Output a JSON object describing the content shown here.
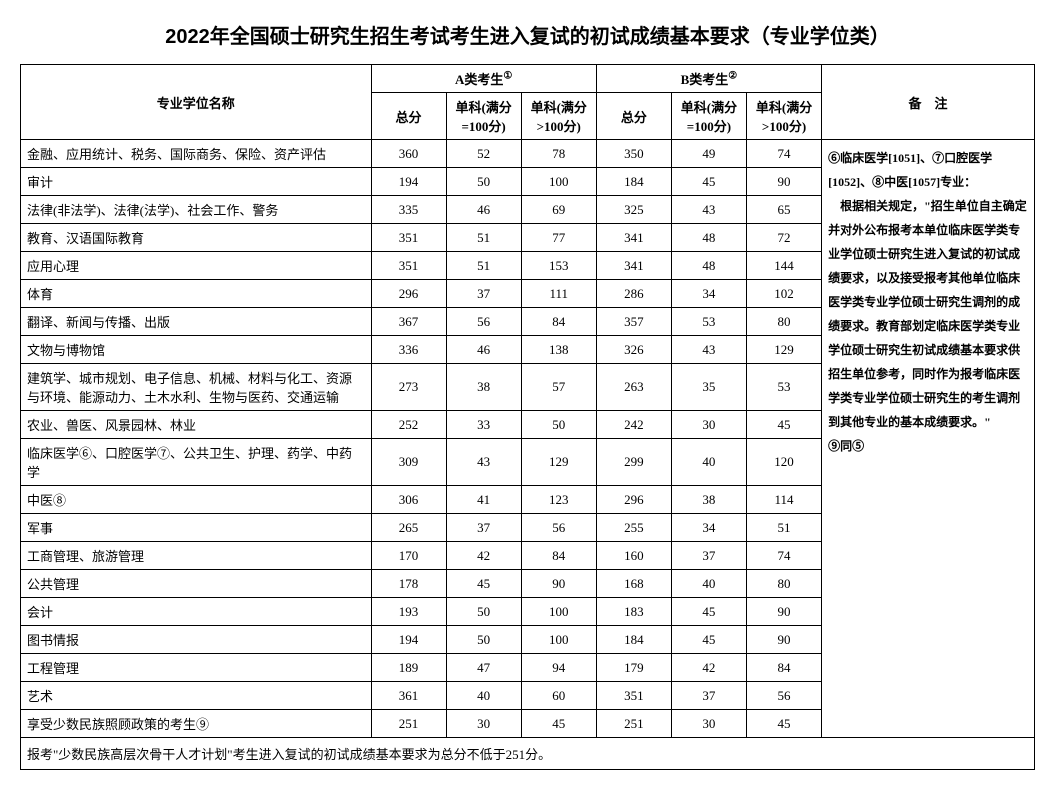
{
  "title": "2022年全国硕士研究生招生考试考生进入复试的初试成绩基本要求（专业学位类）",
  "headers": {
    "name": "专业学位名称",
    "groupA": "A类考生",
    "groupB": "B类考生",
    "total": "总分",
    "sub100": "单科(满分=100分)",
    "subOver100": "单科(满分>100分)",
    "remarks": "备　注",
    "supA": "①",
    "supB": "②"
  },
  "rows": [
    {
      "name": "金融、应用统计、税务、国际商务、保险、资产评估",
      "a_total": "360",
      "a_s1": "52",
      "a_s2": "78",
      "b_total": "350",
      "b_s1": "49",
      "b_s2": "74"
    },
    {
      "name": "审计",
      "a_total": "194",
      "a_s1": "50",
      "a_s2": "100",
      "b_total": "184",
      "b_s1": "45",
      "b_s2": "90"
    },
    {
      "name": "法律(非法学)、法律(法学)、社会工作、警务",
      "a_total": "335",
      "a_s1": "46",
      "a_s2": "69",
      "b_total": "325",
      "b_s1": "43",
      "b_s2": "65"
    },
    {
      "name": "教育、汉语国际教育",
      "a_total": "351",
      "a_s1": "51",
      "a_s2": "77",
      "b_total": "341",
      "b_s1": "48",
      "b_s2": "72"
    },
    {
      "name": "应用心理",
      "a_total": "351",
      "a_s1": "51",
      "a_s2": "153",
      "b_total": "341",
      "b_s1": "48",
      "b_s2": "144"
    },
    {
      "name": "体育",
      "a_total": "296",
      "a_s1": "37",
      "a_s2": "111",
      "b_total": "286",
      "b_s1": "34",
      "b_s2": "102"
    },
    {
      "name": "翻译、新闻与传播、出版",
      "a_total": "367",
      "a_s1": "56",
      "a_s2": "84",
      "b_total": "357",
      "b_s1": "53",
      "b_s2": "80"
    },
    {
      "name": "文物与博物馆",
      "a_total": "336",
      "a_s1": "46",
      "a_s2": "138",
      "b_total": "326",
      "b_s1": "43",
      "b_s2": "129"
    },
    {
      "name": "建筑学、城市规划、电子信息、机械、材料与化工、资源与环境、能源动力、土木水利、生物与医药、交通运输",
      "a_total": "273",
      "a_s1": "38",
      "a_s2": "57",
      "b_total": "263",
      "b_s1": "35",
      "b_s2": "53"
    },
    {
      "name": "农业、兽医、风景园林、林业",
      "a_total": "252",
      "a_s1": "33",
      "a_s2": "50",
      "b_total": "242",
      "b_s1": "30",
      "b_s2": "45"
    },
    {
      "name": "临床医学⑥、口腔医学⑦、公共卫生、护理、药学、中药学",
      "a_total": "309",
      "a_s1": "43",
      "a_s2": "129",
      "b_total": "299",
      "b_s1": "40",
      "b_s2": "120"
    },
    {
      "name": "中医⑧",
      "a_total": "306",
      "a_s1": "41",
      "a_s2": "123",
      "b_total": "296",
      "b_s1": "38",
      "b_s2": "114"
    },
    {
      "name": "军事",
      "a_total": "265",
      "a_s1": "37",
      "a_s2": "56",
      "b_total": "255",
      "b_s1": "34",
      "b_s2": "51"
    },
    {
      "name": "工商管理、旅游管理",
      "a_total": "170",
      "a_s1": "42",
      "a_s2": "84",
      "b_total": "160",
      "b_s1": "37",
      "b_s2": "74"
    },
    {
      "name": "公共管理",
      "a_total": "178",
      "a_s1": "45",
      "a_s2": "90",
      "b_total": "168",
      "b_s1": "40",
      "b_s2": "80"
    },
    {
      "name": "会计",
      "a_total": "193",
      "a_s1": "50",
      "a_s2": "100",
      "b_total": "183",
      "b_s1": "45",
      "b_s2": "90"
    },
    {
      "name": "图书情报",
      "a_total": "194",
      "a_s1": "50",
      "a_s2": "100",
      "b_total": "184",
      "b_s1": "45",
      "b_s2": "90"
    },
    {
      "name": "工程管理",
      "a_total": "189",
      "a_s1": "47",
      "a_s2": "94",
      "b_total": "179",
      "b_s1": "42",
      "b_s2": "84"
    },
    {
      "name": "艺术",
      "a_total": "361",
      "a_s1": "40",
      "a_s2": "60",
      "b_total": "351",
      "b_s1": "37",
      "b_s2": "56"
    },
    {
      "name": "享受少数民族照顾政策的考生⑨",
      "a_total": "251",
      "a_s1": "30",
      "a_s2": "45",
      "b_total": "251",
      "b_s1": "30",
      "b_s2": "45"
    }
  ],
  "remarksText": "⑥临床医学[1051]、⑦口腔医学[1052]、⑧中医[1057]专业：\n　根据相关规定，\"招生单位自主确定并对外公布报考本单位临床医学类专业学位硕士研究生进入复试的初试成绩要求，以及接受报考其他单位临床医学类专业学位硕士研究生调剂的成绩要求。教育部划定临床医学类专业学位硕士研究生初试成绩基本要求供招生单位参考，同时作为报考临床医学类专业学位硕士研究生的考生调剂到其他专业的基本成绩要求。\"\n⑨同⑤",
  "footer": "报考\"少数民族高层次骨干人才计划\"考生进入复试的初试成绩基本要求为总分不低于251分。"
}
